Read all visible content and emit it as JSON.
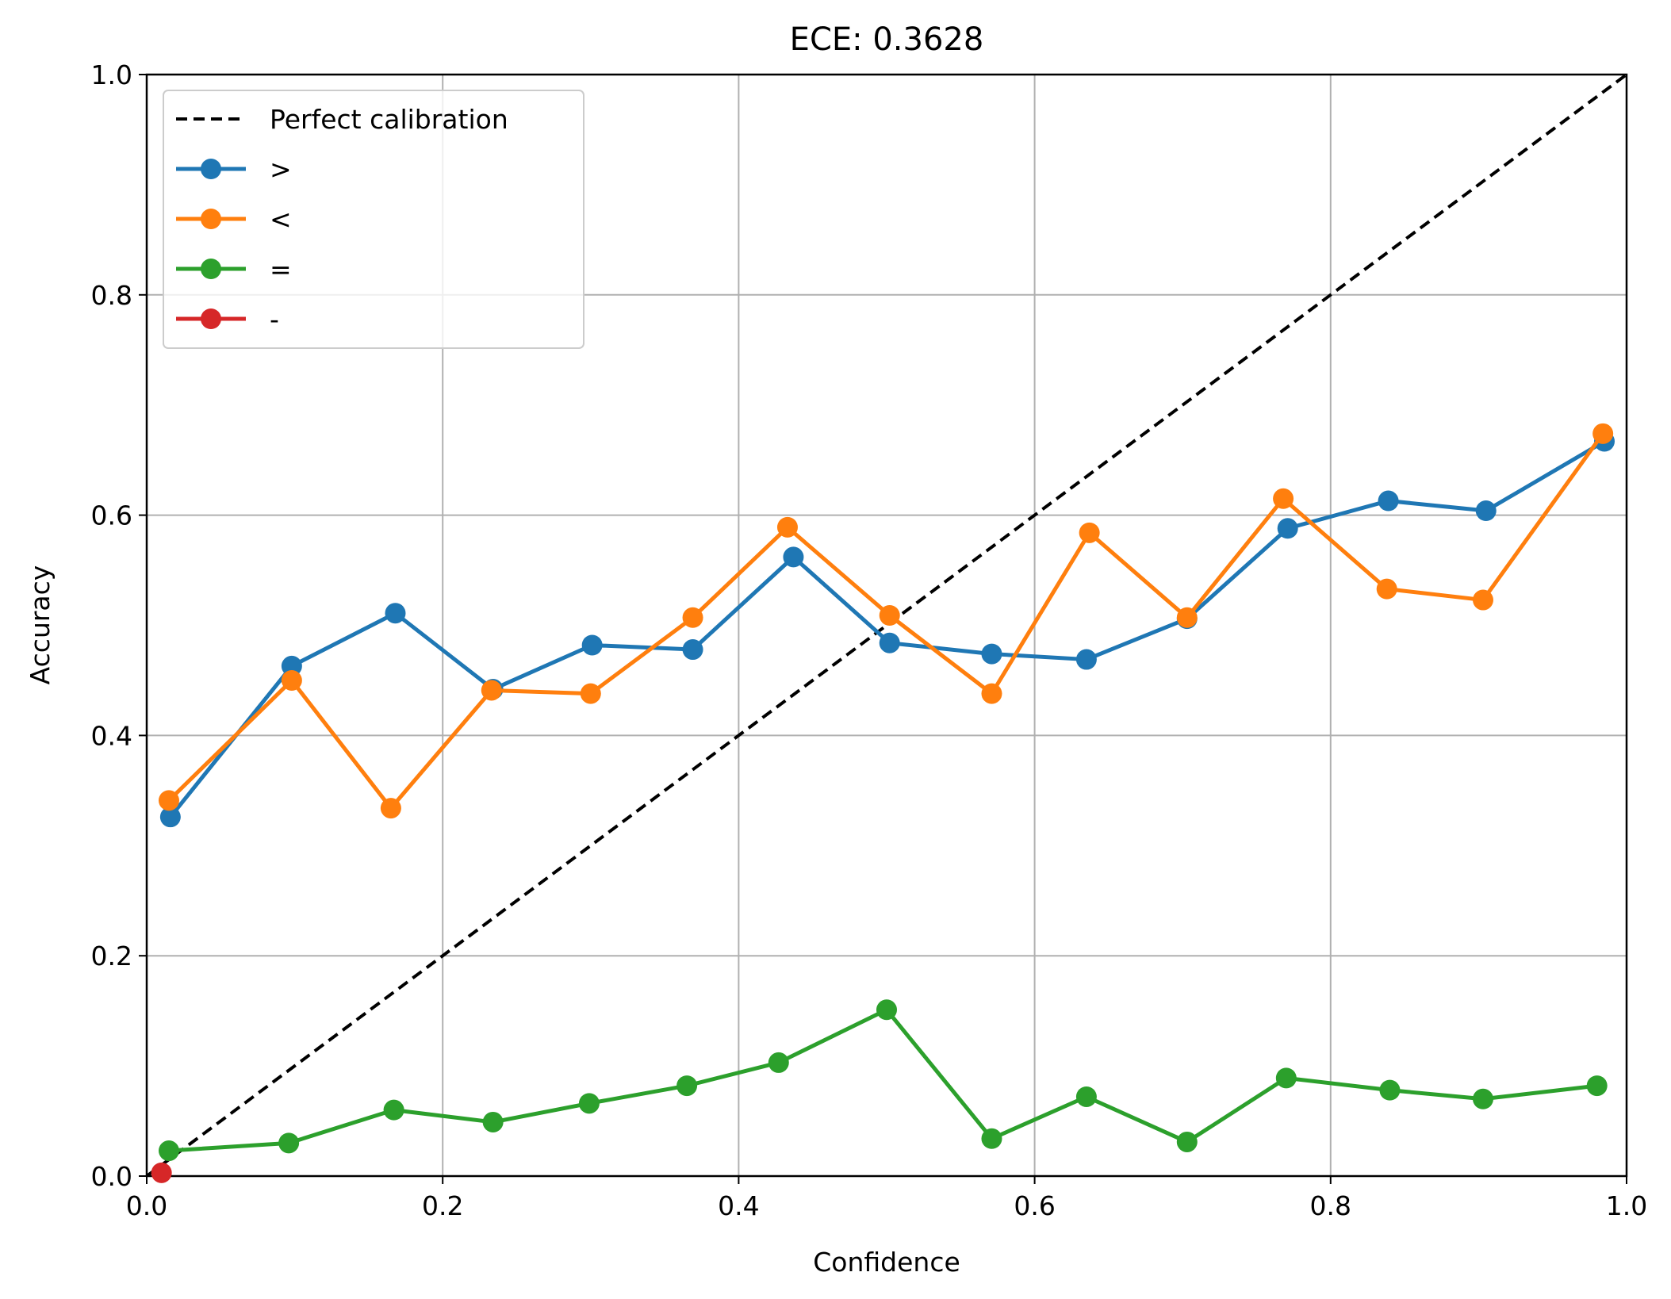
{
  "chart_data": {
    "type": "line",
    "title": "ECE: 0.3628",
    "xlabel": "Confidence",
    "ylabel": "Accuracy",
    "xlim": [
      0,
      1
    ],
    "ylim": [
      0,
      1
    ],
    "xticks": [
      "0.0",
      "0.2",
      "0.4",
      "0.6",
      "0.8",
      "1.0"
    ],
    "yticks": [
      "0.0",
      "0.2",
      "0.4",
      "0.6",
      "0.8",
      "1.0"
    ],
    "grid": true,
    "legend_position": "top-left",
    "reference_line": {
      "name": "Perfect calibration",
      "style": "dashed",
      "color": "#000000",
      "points": [
        [
          0,
          0
        ],
        [
          1,
          1
        ]
      ]
    },
    "series": [
      {
        "name": ">",
        "color": "#1f77b4",
        "x": [
          0.016,
          0.098,
          0.168,
          0.234,
          0.301,
          0.369,
          0.437,
          0.502,
          0.571,
          0.635,
          0.703,
          0.771,
          0.839,
          0.905,
          0.985
        ],
        "y": [
          0.326,
          0.463,
          0.511,
          0.442,
          0.482,
          0.478,
          0.562,
          0.484,
          0.474,
          0.469,
          0.506,
          0.588,
          0.613,
          0.604,
          0.667
        ]
      },
      {
        "name": "<",
        "color": "#ff7f0e",
        "x": [
          0.015,
          0.098,
          0.165,
          0.233,
          0.3,
          0.369,
          0.433,
          0.502,
          0.571,
          0.637,
          0.703,
          0.768,
          0.838,
          0.903,
          0.984
        ],
        "y": [
          0.341,
          0.45,
          0.334,
          0.441,
          0.438,
          0.507,
          0.589,
          0.509,
          0.438,
          0.584,
          0.507,
          0.615,
          0.533,
          0.523,
          0.674
        ]
      },
      {
        "name": "=",
        "color": "#2ca02c",
        "x": [
          0.015,
          0.096,
          0.167,
          0.234,
          0.299,
          0.365,
          0.427,
          0.5,
          0.571,
          0.635,
          0.703,
          0.77,
          0.84,
          0.903,
          0.98
        ],
        "y": [
          0.023,
          0.03,
          0.06,
          0.049,
          0.066,
          0.082,
          0.103,
          0.151,
          0.034,
          0.072,
          0.031,
          0.089,
          0.078,
          0.07,
          0.082
        ]
      },
      {
        "name": "-",
        "color": "#d62728",
        "x": [
          0.01
        ],
        "y": [
          0.003
        ]
      }
    ]
  }
}
